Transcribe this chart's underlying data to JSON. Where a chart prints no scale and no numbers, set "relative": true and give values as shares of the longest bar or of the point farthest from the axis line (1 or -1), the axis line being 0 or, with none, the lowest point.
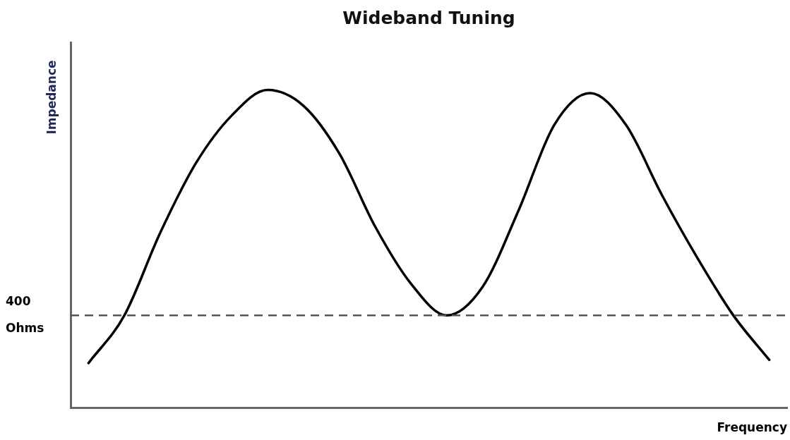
{
  "chart_data": {
    "type": "line",
    "title": "Wideband Tuning",
    "xlabel": "Frequency",
    "ylabel": "Impedance",
    "relative": true,
    "categories": [
      null,
      null,
      null,
      null,
      null,
      null,
      null,
      null,
      null,
      null,
      null,
      null,
      null,
      null,
      null,
      null,
      null,
      null,
      null,
      null
    ],
    "series": [
      {
        "color": "#000000",
        "values": [
          0.14,
          0.29,
          0.55,
          0.77,
          0.92,
          1,
          0.95,
          0.8,
          0.57,
          0.39,
          0.29,
          0.38,
          0.62,
          0.89,
          0.99,
          0.89,
          0.67,
          0.47,
          0.29,
          0.15
        ]
      }
    ],
    "ref_lines": [
      {
        "axis": "y",
        "value": 0.29,
        "label": "400 Ohms",
        "color": "#555555",
        "line_style": "dashed"
      }
    ],
    "grid": false,
    "legend": false,
    "marker": "none",
    "line_style": "solid"
  }
}
